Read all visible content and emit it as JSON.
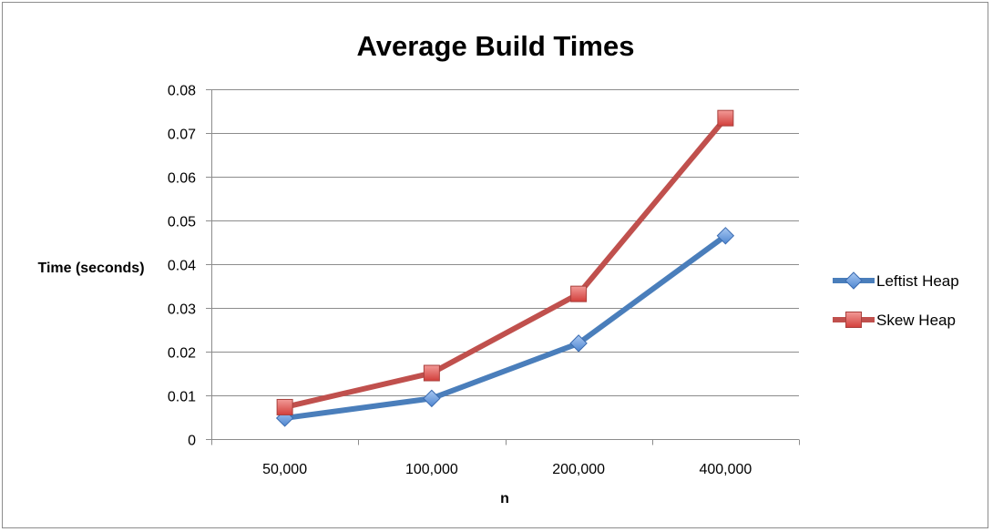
{
  "chart_data": {
    "type": "line",
    "title": "Average Build Times",
    "xlabel": "n",
    "ylabel": "Time (seconds)",
    "categories": [
      "50,000",
      "100,000",
      "200,000",
      "400,000"
    ],
    "ylim": [
      0,
      0.08
    ],
    "yticks": [
      0,
      0.01,
      0.02,
      0.03,
      0.04,
      0.05,
      0.06,
      0.07,
      0.08
    ],
    "ytick_labels": [
      "0",
      "0.01",
      "0.02",
      "0.03",
      "0.04",
      "0.05",
      "0.06",
      "0.07",
      "0.08"
    ],
    "grid": true,
    "legend_position": "right",
    "series": [
      {
        "name": "Leftist Heap",
        "values": [
          0.0048,
          0.0093,
          0.0219,
          0.0465
        ],
        "color": "#4a7ebb",
        "marker": "diamond",
        "marker_fill": "#6f9fe0"
      },
      {
        "name": "Skew Heap",
        "values": [
          0.0073,
          0.0151,
          0.0332,
          0.0734
        ],
        "color": "#c0504d",
        "marker": "square",
        "marker_fill": "#e0605d"
      }
    ]
  }
}
